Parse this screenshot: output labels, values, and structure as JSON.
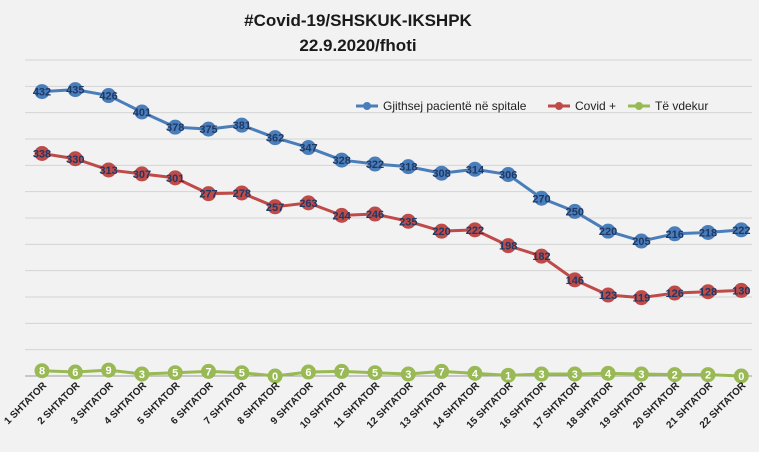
{
  "chart_data": {
    "type": "line",
    "title": "#Covid-19/SHSKUK-IKSHPK",
    "subtitle": "22.9.2020/fhoti",
    "xlabel": "",
    "ylabel": "",
    "ylim": [
      0,
      480
    ],
    "grid": true,
    "legend_position": "top-right",
    "categories": [
      "1 SHTATOR",
      "2 SHTATOR",
      "3 SHTATOR",
      "4 SHTATOR",
      "5 SHTATOR",
      "6 SHTATOR",
      "7 SHTATOR",
      "8 SHTATOR",
      "9 SHTATOR",
      "10 SHTATOR",
      "11 SHTATOR",
      "12 SHTATOR",
      "13 SHTATOR",
      "14 SHTATOR",
      "15 SHTATOR",
      "16 SHTATOR",
      "17 SHTATOR",
      "18 SHTATOR",
      "19 SHTATOR",
      "20 SHTATOR",
      "21 SHTATOR",
      "22 SHTATOR"
    ],
    "series": [
      {
        "name": "Gjithsej pacientë në spitale",
        "color": "#4a7ebb",
        "values": [
          432,
          435,
          426,
          401,
          378,
          375,
          381,
          362,
          347,
          328,
          322,
          318,
          308,
          314,
          306,
          270,
          250,
          220,
          205,
          216,
          218,
          222
        ]
      },
      {
        "name": "Covid +",
        "color": "#be4b48",
        "values": [
          338,
          330,
          313,
          307,
          301,
          277,
          278,
          257,
          263,
          244,
          246,
          235,
          220,
          222,
          198,
          182,
          146,
          123,
          119,
          126,
          128,
          130
        ]
      },
      {
        "name": "Të vdekur",
        "color": "#98b954",
        "values": [
          8,
          6,
          9,
          3,
          5,
          7,
          5,
          0,
          6,
          7,
          5,
          3,
          7,
          4,
          1,
          3,
          3,
          4,
          3,
          2,
          2,
          0
        ]
      }
    ]
  }
}
